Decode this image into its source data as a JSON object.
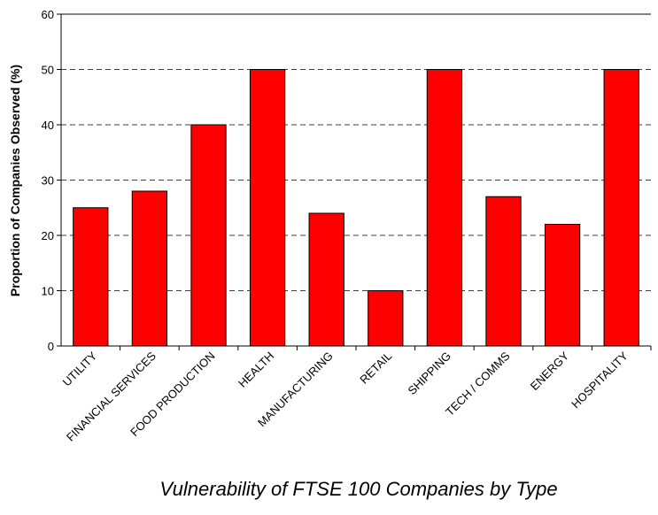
{
  "chart_data": {
    "type": "bar",
    "title": "Vulnerability of FTSE 100 Companies by Type",
    "y_label": "Proportion of Companies Observed (%)",
    "categories": [
      "UTILITY",
      "FINANCIAL SERVICES",
      "FOOD PRODUCTION",
      "HEALTH",
      "MANUFACTURING",
      "RETAIL",
      "SHIPPING",
      "TECH / COMMS",
      "ENERGY",
      "HOSPITALITY"
    ],
    "values": [
      25,
      28,
      40,
      50,
      24,
      10,
      50,
      27,
      22,
      50
    ],
    "color": "#ff0000",
    "ylim": [
      0,
      60
    ],
    "yticks": [
      0,
      10,
      20,
      30,
      40,
      50,
      60
    ],
    "grid": true
  }
}
